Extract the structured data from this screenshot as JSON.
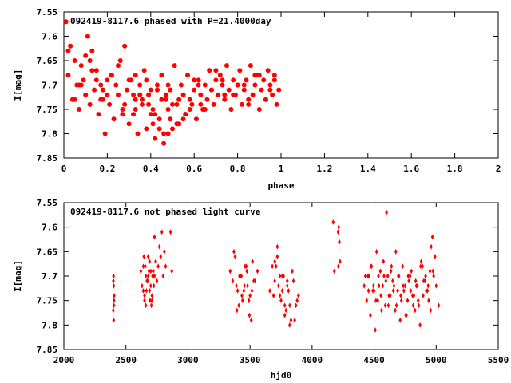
{
  "chart_data": [
    {
      "type": "scatter",
      "title": "092419-8117.6 phased with P=21.4000day",
      "xlabel": "phase",
      "ylabel": "I[mag]",
      "xlim": [
        0,
        2
      ],
      "ylim": [
        7.85,
        7.55
      ],
      "y_inverted": true,
      "xticks": [
        "0",
        "0.2",
        "0.4",
        "0.6",
        "0.8",
        "1",
        "1.2",
        "1.4",
        "1.6",
        "1.8",
        "2"
      ],
      "yticks": [
        "7.55",
        "7.6",
        "7.65",
        "7.7",
        "7.75",
        "7.8",
        "7.85"
      ],
      "marker": "filled-circle",
      "color": "#ff0000",
      "grid": false,
      "series": [
        {
          "x": [
            0.01,
            0.02,
            0.03,
            0.04,
            0.05,
            0.06,
            0.07,
            0.08,
            0.09,
            0.1,
            0.11,
            0.12,
            0.13,
            0.14,
            0.15,
            0.16,
            0.17,
            0.18,
            0.19,
            0.2,
            0.21,
            0.22,
            0.23,
            0.24,
            0.25,
            0.26,
            0.27,
            0.28,
            0.29,
            0.3,
            0.31,
            0.32,
            0.33,
            0.34,
            0.35,
            0.36,
            0.37,
            0.38,
            0.39,
            0.4,
            0.41,
            0.42,
            0.43,
            0.44,
            0.45,
            0.46,
            0.47,
            0.48,
            0.49,
            0.5,
            0.51,
            0.52,
            0.53,
            0.54,
            0.55,
            0.56,
            0.57,
            0.58,
            0.59,
            0.6,
            0.61,
            0.62,
            0.63,
            0.64,
            0.65,
            0.66,
            0.67,
            0.68,
            0.69,
            0.7,
            0.71,
            0.72,
            0.73,
            0.74,
            0.75,
            0.76,
            0.77,
            0.78,
            0.79,
            0.8,
            0.81,
            0.82,
            0.83,
            0.84,
            0.85,
            0.86,
            0.87,
            0.88,
            0.89,
            0.9,
            0.91,
            0.92,
            0.93,
            0.94,
            0.95,
            0.96,
            0.97,
            0.98,
            0.99,
            0.35,
            0.38,
            0.42,
            0.45,
            0.48,
            0.52,
            0.33,
            0.4,
            0.46,
            0.5,
            0.55,
            0.3,
            0.36,
            0.44,
            0.47,
            0.58,
            0.62,
            0.27,
            0.33,
            0.39,
            0.43,
            0.49,
            0.53,
            0.6,
            0.65,
            0.7,
            0.74,
            0.8,
            0.85,
            0.9,
            0.95,
            0.05,
            0.1,
            0.15,
            0.2,
            0.25,
            0.07,
            0.12,
            0.18,
            0.22,
            0.28,
            0.02,
            0.08,
            0.13,
            0.17,
            0.32,
            0.41,
            0.48,
            0.56,
            0.63,
            0.68,
            0.73,
            0.78,
            0.83,
            0.88,
            0.93,
            0.97
          ],
          "y": [
            7.57,
            7.68,
            7.62,
            7.73,
            7.65,
            7.7,
            7.75,
            7.66,
            7.69,
            7.72,
            7.6,
            7.74,
            7.63,
            7.71,
            7.67,
            7.76,
            7.7,
            7.73,
            7.8,
            7.69,
            7.74,
            7.68,
            7.77,
            7.7,
            7.72,
            7.65,
            7.75,
            7.62,
            7.71,
            7.78,
            7.69,
            7.76,
            7.73,
            7.8,
            7.7,
            7.74,
            7.67,
            7.79,
            7.72,
            7.76,
            7.75,
            7.81,
            7.7,
            7.77,
            7.68,
            7.82,
            7.73,
            7.75,
            7.71,
            7.79,
            7.66,
            7.74,
            7.78,
            7.7,
            7.72,
            7.76,
            7.68,
            7.73,
            7.74,
            7.71,
            7.77,
            7.69,
            7.72,
            7.75,
            7.7,
            7.73,
            7.67,
            7.71,
            7.74,
            7.69,
            7.72,
            7.68,
            7.7,
            7.73,
            7.66,
            7.71,
            7.75,
            7.69,
            7.72,
            7.7,
            7.67,
            7.74,
            7.71,
            7.69,
            7.73,
            7.66,
            7.72,
            7.7,
            7.68,
            7.75,
            7.71,
            7.69,
            7.73,
            7.67,
            7.7,
            7.72,
            7.68,
            7.74,
            7.71,
            7.72,
            7.69,
            7.76,
            7.73,
            7.7,
            7.78,
            7.75,
            7.71,
            7.8,
            7.74,
            7.77,
            7.69,
            7.73,
            7.79,
            7.72,
            7.75,
            7.7,
            7.76,
            7.68,
            7.74,
            7.71,
            7.77,
            7.73,
            7.69,
            7.75,
            7.67,
            7.72,
            7.7,
            7.74,
            7.68,
            7.71,
            7.73,
            7.64,
            7.69,
            7.72,
            7.66,
            7.7,
            7.65,
            7.71,
            7.68,
            7.74,
            7.63,
            7.7,
            7.67,
            7.73,
            7.72,
            7.78,
            7.8,
            7.76,
            7.74,
            7.71,
            7.69,
            7.72,
            7.7,
            7.68,
            7.73,
            7.69
          ]
        }
      ]
    },
    {
      "type": "scatter",
      "title": "092419-8117.6 not phased light curve",
      "xlabel": "hjd0",
      "ylabel": "I[mag]",
      "xlim": [
        2000,
        5500
      ],
      "ylim": [
        7.85,
        7.55
      ],
      "y_inverted": true,
      "xticks": [
        "2000",
        "2500",
        "3000",
        "3500",
        "4000",
        "4500",
        "5000",
        "5500"
      ],
      "yticks": [
        "7.55",
        "7.6",
        "7.65",
        "7.7",
        "7.75",
        "7.8",
        "7.85"
      ],
      "marker": "diamond",
      "color": "#ff0000",
      "grid": false,
      "series": [
        {
          "x": [
            2400,
            2402,
            2405,
            2398,
            2403,
            2401,
            2404,
            2399,
            2620,
            2630,
            2640,
            2650,
            2660,
            2670,
            2680,
            2690,
            2700,
            2710,
            2720,
            2730,
            2740,
            2750,
            2760,
            2770,
            2780,
            2790,
            2800,
            2810,
            2820,
            2640,
            2660,
            2680,
            2700,
            2720,
            2650,
            2670,
            2690,
            2710,
            2730,
            2645,
            2665,
            2685,
            2705,
            2725,
            2655,
            2675,
            2695,
            2715,
            2860,
            2870,
            3340,
            3360,
            3380,
            3400,
            3420,
            3440,
            3460,
            3480,
            3500,
            3520,
            3540,
            3560,
            3390,
            3410,
            3430,
            3450,
            3470,
            3490,
            3510,
            3530,
            3370,
            3395,
            3415,
            3435,
            3455,
            3475,
            3495,
            3515,
            3660,
            3680,
            3700,
            3720,
            3740,
            3760,
            3780,
            3800,
            3820,
            3840,
            3860,
            3880,
            3700,
            3720,
            3740,
            3760,
            3780,
            3800,
            3820,
            3690,
            3710,
            3730,
            3750,
            3770,
            3790,
            3810,
            3830,
            3850,
            3870,
            3890,
            4170,
            4180,
            4210,
            4215,
            4220,
            4225,
            4212,
            4420,
            4440,
            4460,
            4480,
            4500,
            4520,
            4540,
            4560,
            4580,
            4600,
            4620,
            4640,
            4660,
            4680,
            4700,
            4720,
            4740,
            4760,
            4780,
            4800,
            4820,
            4840,
            4860,
            4880,
            4900,
            4920,
            4940,
            4960,
            4980,
            5000,
            5020,
            4450,
            4470,
            4490,
            4510,
            4530,
            4550,
            4570,
            4590,
            4610,
            4630,
            4650,
            4670,
            4690,
            4710,
            4730,
            4750,
            4770,
            4790,
            4810,
            4830,
            4850,
            4870,
            4890,
            4910,
            4930,
            4950,
            4970,
            4990,
            4430,
            4455,
            4475,
            4495,
            4515,
            4535,
            4555,
            4575,
            4595,
            4615,
            4635,
            4655,
            4675,
            4695,
            4715,
            4735,
            4755,
            4775,
            4795,
            4815,
            4835,
            4855,
            4875,
            4895,
            4915,
            4935,
            4955,
            4975
          ],
          "y": [
            7.7,
            7.72,
            7.74,
            7.77,
            7.76,
            7.79,
            7.75,
            7.71,
            7.69,
            7.72,
            7.68,
            7.74,
            7.7,
            7.71,
            7.66,
            7.73,
            7.69,
            7.75,
            7.7,
            7.62,
            7.67,
            7.71,
            7.68,
            7.64,
            7.66,
            7.61,
            7.7,
            7.65,
            7.68,
            7.73,
            7.76,
            7.7,
            7.72,
            7.69,
            7.75,
            7.71,
            7.67,
            7.74,
            7.7,
            7.66,
            7.73,
            7.69,
            7.76,
            7.72,
            7.68,
            7.71,
            7.75,
            7.7,
            7.61,
            7.69,
            7.69,
            7.71,
            7.66,
            7.73,
            7.7,
            7.75,
            7.68,
            7.72,
            7.74,
            7.67,
            7.71,
            7.69,
            7.72,
            7.76,
            7.7,
            7.73,
            7.68,
            7.75,
            7.79,
            7.71,
            7.65,
            7.77,
            7.7,
            7.74,
            7.72,
            7.69,
            7.78,
            7.73,
            7.73,
            7.68,
            7.71,
            7.66,
            7.74,
            7.7,
            7.78,
            7.72,
            7.76,
            7.69,
            7.79,
            7.75,
            7.67,
            7.64,
            7.7,
            7.73,
            7.76,
            7.71,
            7.8,
            7.74,
            7.68,
            7.72,
            7.75,
            7.7,
            7.77,
            7.73,
            7.79,
            7.71,
            7.76,
            7.74,
            7.59,
            7.69,
            7.61,
            7.6,
            7.63,
            7.67,
            7.68,
            7.72,
            7.75,
            7.7,
            7.68,
            7.73,
            7.65,
            7.72,
            7.77,
            7.7,
            7.57,
            7.74,
            7.68,
            7.72,
            7.76,
            7.7,
            7.75,
            7.73,
            7.78,
            7.71,
            7.69,
            7.74,
            7.72,
            7.76,
            7.67,
            7.71,
            7.73,
            7.75,
            7.64,
            7.7,
            7.72,
            7.76,
            7.7,
            7.78,
            7.73,
            7.81,
            7.75,
            7.69,
            7.72,
            7.76,
            7.7,
            7.74,
            7.71,
            7.77,
            7.73,
            7.79,
            7.68,
            7.72,
            7.75,
            7.7,
            7.74,
            7.77,
            7.72,
            7.8,
            7.68,
            7.71,
            7.73,
            7.69,
            7.62,
            7.66,
            7.7,
            7.73,
            7.68,
            7.72,
            7.75,
            7.7,
            7.74,
            7.67,
            7.71,
            7.76,
            7.69,
            7.73,
            7.65,
            7.7,
            7.74,
            7.72,
            7.78,
            7.7,
            7.73,
            7.76,
            7.71,
            7.75,
            7.68,
            7.74,
            7.7,
            7.72,
            7.77,
            7.69
          ]
        }
      ]
    }
  ]
}
